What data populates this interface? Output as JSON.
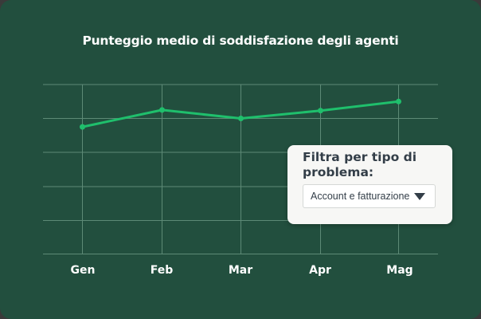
{
  "colors": {
    "background": "#224f3e",
    "gridline": "#5d8a76",
    "series_line": "#1fbf6c",
    "text_light": "#ffffff",
    "card_background": "#f7f7f5",
    "card_text": "#333e48"
  },
  "chart_data": {
    "type": "line",
    "title": "Punteggio medio di soddisfazione degli agenti",
    "xlabel": "",
    "ylabel": "",
    "categories": [
      "Gen",
      "Feb",
      "Mar",
      "Apr",
      "Mag"
    ],
    "series": [
      {
        "name": "Punteggio medio di soddisfazione",
        "values": [
          3.75,
          4.25,
          4.0,
          4.23,
          4.5
        ]
      }
    ],
    "ylim": [
      0,
      5
    ],
    "y_ticks_shown": false,
    "grid": true,
    "legend": "none"
  },
  "chart": {
    "title": "Punteggio medio di soddisfazione degli agenti",
    "x_labels": [
      "Gen",
      "Feb",
      "Mar",
      "Apr",
      "Mag"
    ]
  },
  "filter": {
    "heading": "Filtra per tipo di problema:",
    "selected_option": "Account e fatturazione",
    "arrow_icon": "caret-down-icon"
  }
}
